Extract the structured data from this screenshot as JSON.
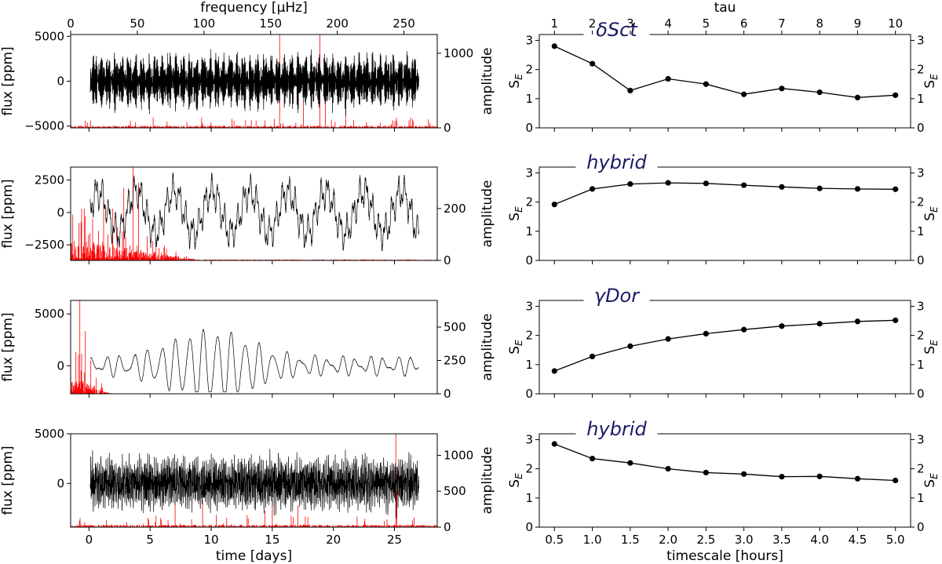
{
  "chart_data": [
    {
      "type": "line",
      "title": "",
      "xlabel": "",
      "ylabel": "flux [ppm]",
      "y2label": "amplitude",
      "top_xlabel": "frequency [μHz]",
      "xlim": [
        -1.5,
        28.5
      ],
      "ylim": [
        -5200,
        5200
      ],
      "y2lim": [
        0,
        1250
      ],
      "top_xlim": [
        0,
        275
      ],
      "x_ticks": [
        0,
        5,
        10,
        15,
        20,
        25
      ],
      "x_tick_labels": [
        "",
        "",
        "",
        "",
        "",
        ""
      ],
      "y_ticks": [
        -5000,
        0,
        5000
      ],
      "y_tick_labels": [
        "−5000",
        "0",
        "5000"
      ],
      "y2_ticks": [
        0,
        1000
      ],
      "y2_tick_labels": [
        "0",
        "1000"
      ],
      "top_ticks": [
        0,
        50,
        100,
        150,
        200,
        250
      ],
      "top_tick_labels": [
        "0",
        "50",
        "100",
        "150",
        "200",
        "250"
      ],
      "series": [
        {
          "color": "#000000",
          "values": "light curve, t = 0.1–27.0 d, flux oscillating between about −3400 and +3500 ppm"
        },
        {
          "color": "#ff0000",
          "values": "amplitude spectrum, strongest peaks near 191 μHz (1250), 185 μHz (800), 213 μHz (600), 174 μHz (350)"
        }
      ],
      "grid": false
    },
    {
      "type": "line",
      "title": "",
      "xlabel": "",
      "ylabel": "flux [ppm]",
      "y2label": "amplitude",
      "xlim": [
        -1.5,
        28.5
      ],
      "ylim": [
        -3700,
        3500
      ],
      "y2lim": [
        0,
        360
      ],
      "x_ticks": [
        0,
        5,
        10,
        15,
        20,
        25
      ],
      "x_tick_labels": [
        "",
        "",
        "",
        "",
        "",
        ""
      ],
      "y_ticks": [
        -2500,
        0,
        2500
      ],
      "y_tick_labels": [
        "−2500",
        "0",
        "2500"
      ],
      "y2_ticks": [
        0,
        200
      ],
      "y2_tick_labels": [
        "0",
        "200"
      ],
      "series": [
        {
          "color": "#000000",
          "values": "light curve, t = 0.1–27.0 d, flux between about −3000 and +3200 ppm"
        },
        {
          "color": "#ff0000",
          "values": "amplitude spectrum concentrated at low frequency, highest peak about 360 near x = 4.3"
        }
      ],
      "grid": false
    },
    {
      "type": "line",
      "title": "",
      "xlabel": "",
      "ylabel": "flux [ppm]",
      "y2label": "amplitude",
      "xlim": [
        -1.5,
        28.5
      ],
      "ylim": [
        -2700,
        6300
      ],
      "y2lim": [
        0,
        700
      ],
      "x_ticks": [
        0,
        5,
        10,
        15,
        20,
        25
      ],
      "x_tick_labels": [
        "",
        "",
        "",
        "",
        "",
        ""
      ],
      "y_ticks": [
        0,
        5000
      ],
      "y_tick_labels": [
        "0",
        "5000"
      ],
      "y2_ticks": [
        0,
        250,
        500
      ],
      "y2_tick_labels": [
        "0",
        "250",
        "500"
      ],
      "series": [
        {
          "color": "#000000",
          "values": "light curve, t = 0.1–27.0 d, slow oscillation, flux between about −2400 and +5900 ppm"
        },
        {
          "color": "#ff0000",
          "values": "amplitude spectrum with peaks below x ≈ 1, highest about 700"
        }
      ],
      "grid": false
    },
    {
      "type": "line",
      "title": "",
      "xlabel": "time [days]",
      "ylabel": "flux [ppm]",
      "y2label": "amplitude",
      "xlim": [
        -1.5,
        28.5
      ],
      "ylim": [
        -4400,
        5000
      ],
      "y2lim": [
        0,
        1300
      ],
      "x_ticks": [
        0,
        5,
        10,
        15,
        20,
        25
      ],
      "x_tick_labels": [
        "0",
        "5",
        "10",
        "15",
        "20",
        "25"
      ],
      "y_ticks": [
        0,
        5000
      ],
      "y_tick_labels": [
        "0",
        "5000"
      ],
      "y2_ticks": [
        0,
        500,
        1000
      ],
      "y2_tick_labels": [
        "0",
        "500",
        "1000"
      ],
      "series": [
        {
          "color": "#000000",
          "values": "light curve, t = 0.1–27.0 d, flux between about −3800 and +4500 ppm"
        },
        {
          "color": "#ff0000",
          "values": "amplitude spectrum, strongest peak about 1300 near x = 25.2"
        }
      ],
      "grid": false
    },
    {
      "type": "line",
      "title": "δSct",
      "xlabel": "",
      "ylabel": "S_E",
      "top_xlabel": "tau",
      "x": [
        0.5,
        1.0,
        1.5,
        2.0,
        2.5,
        3.0,
        3.5,
        4.0,
        4.5,
        5.0
      ],
      "top_tick_labels": [
        "1",
        "2",
        "3",
        "4",
        "5",
        "6",
        "7",
        "8",
        "9",
        "10"
      ],
      "x_tick_labels": [
        "",
        "",
        "",
        "",
        "",
        "",
        "",
        "",
        "",
        ""
      ],
      "values": [
        2.8,
        2.2,
        1.28,
        1.68,
        1.5,
        1.15,
        1.35,
        1.22,
        1.04,
        1.12
      ],
      "xlim": [
        0.3,
        5.2
      ],
      "ylim": [
        0,
        3.2
      ],
      "y_ticks": [
        0,
        1,
        2,
        3
      ],
      "y_tick_labels": [
        "0",
        "1",
        "2",
        "3"
      ],
      "grid": false
    },
    {
      "type": "line",
      "title": "hybrid",
      "xlabel": "",
      "ylabel": "S_E",
      "x": [
        0.5,
        1.0,
        1.5,
        2.0,
        2.5,
        3.0,
        3.5,
        4.0,
        4.5,
        5.0
      ],
      "x_tick_labels": [
        "",
        "",
        "",
        "",
        "",
        "",
        "",
        "",
        "",
        ""
      ],
      "values": [
        1.92,
        2.45,
        2.62,
        2.66,
        2.64,
        2.58,
        2.52,
        2.47,
        2.45,
        2.44
      ],
      "xlim": [
        0.3,
        5.2
      ],
      "ylim": [
        0,
        3.2
      ],
      "y_ticks": [
        0,
        1,
        2,
        3
      ],
      "y_tick_labels": [
        "0",
        "1",
        "2",
        "3"
      ],
      "grid": false
    },
    {
      "type": "line",
      "title": "γDor",
      "xlabel": "",
      "ylabel": "S_E",
      "x": [
        0.5,
        1.0,
        1.5,
        2.0,
        2.5,
        3.0,
        3.5,
        4.0,
        4.5,
        5.0
      ],
      "x_tick_labels": [
        "",
        "",
        "",
        "",
        "",
        "",
        "",
        "",
        "",
        ""
      ],
      "values": [
        0.78,
        1.28,
        1.63,
        1.88,
        2.06,
        2.2,
        2.32,
        2.4,
        2.48,
        2.52
      ],
      "xlim": [
        0.3,
        5.2
      ],
      "ylim": [
        0,
        3.2
      ],
      "y_ticks": [
        0,
        1,
        2,
        3
      ],
      "y_tick_labels": [
        "0",
        "1",
        "2",
        "3"
      ],
      "grid": false
    },
    {
      "type": "line",
      "title": "hybrid",
      "xlabel": "timescale [hours]",
      "ylabel": "S_E",
      "x": [
        0.5,
        1.0,
        1.5,
        2.0,
        2.5,
        3.0,
        3.5,
        4.0,
        4.5,
        5.0
      ],
      "x_tick_labels": [
        "0.5",
        "1.0",
        "1.5",
        "2.0",
        "2.5",
        "3.0",
        "3.5",
        "4.0",
        "4.5",
        "5.0"
      ],
      "values": [
        2.85,
        2.35,
        2.2,
        2.0,
        1.87,
        1.82,
        1.73,
        1.74,
        1.66,
        1.6
      ],
      "xlim": [
        0.3,
        5.2
      ],
      "ylim": [
        0,
        3.2
      ],
      "y_ticks": [
        0,
        1,
        2,
        3
      ],
      "y_tick_labels": [
        "0",
        "1",
        "2",
        "3"
      ],
      "grid": false
    }
  ],
  "colors": {
    "flux_line": "#000000",
    "spectrum_line": "#ff0000",
    "title_text": "#1a1a66",
    "axes": "#000000"
  }
}
